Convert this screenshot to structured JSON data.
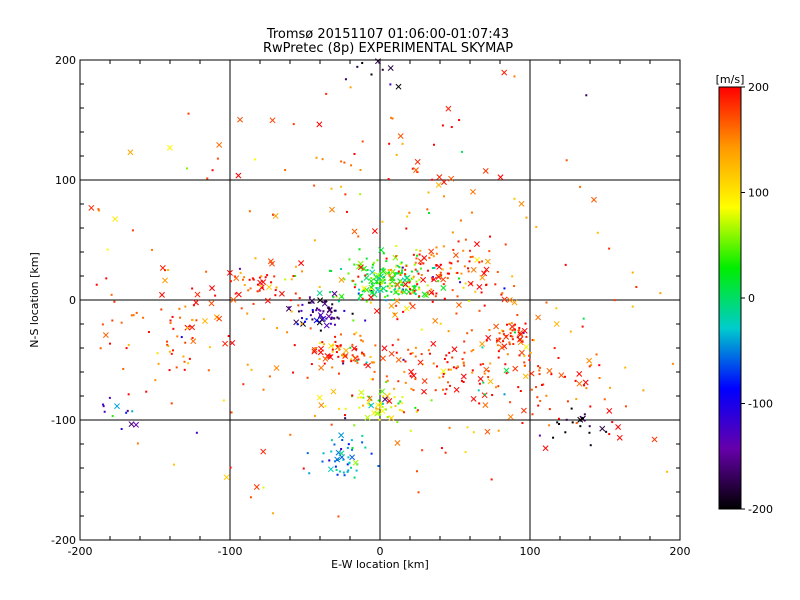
{
  "chart_data": {
    "type": "scatter",
    "title": "Tromsø 20151107 01:06:00-01:07:43",
    "subtitle": "RwPretec (8p) EXPERIMENTAL SKYMAP",
    "xlabel": "E-W location [km]",
    "ylabel": "N-S location [km]",
    "xlim": [
      -200,
      200
    ],
    "ylim": [
      -200,
      200
    ],
    "xticks": [
      "-200",
      "-100",
      "0",
      "100",
      "200"
    ],
    "yticks": [
      "-200",
      "-100",
      "0",
      "100",
      "200"
    ],
    "grid": true,
    "colorbar": {
      "label": "[m/s]",
      "range": [
        -200,
        200
      ],
      "ticks": [
        "200",
        "100",
        "0",
        "-100",
        "-200"
      ],
      "colors": [
        "#ff0000",
        "#ff9900",
        "#ffff00",
        "#00ee00",
        "#00cccc",
        "#0000ff",
        "#6600aa",
        "#000000"
      ]
    },
    "marker_types": [
      "dot",
      "cross"
    ],
    "clusters": [
      {
        "x": 5,
        "y": 15,
        "sx": 16,
        "sy": 10,
        "v": 30,
        "n": 180
      },
      {
        "x": 40,
        "y": 20,
        "sx": 20,
        "sy": 15,
        "v": 180,
        "n": 110
      },
      {
        "x": -40,
        "y": -10,
        "sx": 8,
        "sy": 6,
        "v": -150,
        "n": 60
      },
      {
        "x": -25,
        "y": -45,
        "sx": 12,
        "sy": 8,
        "v": 170,
        "n": 70
      },
      {
        "x": 88,
        "y": -30,
        "sx": 8,
        "sy": 8,
        "v": 190,
        "n": 60
      },
      {
        "x": 0,
        "y": -88,
        "sx": 14,
        "sy": 8,
        "v": 80,
        "n": 60
      },
      {
        "x": -22,
        "y": -132,
        "sx": 8,
        "sy": 10,
        "v": -40,
        "n": 50
      },
      {
        "x": -80,
        "y": 12,
        "sx": 10,
        "sy": 6,
        "v": 190,
        "n": 40
      },
      {
        "x": -140,
        "y": -25,
        "sx": 25,
        "sy": 20,
        "v": 185,
        "n": 60
      },
      {
        "x": 110,
        "y": -75,
        "sx": 25,
        "sy": 20,
        "v": 185,
        "n": 60
      },
      {
        "x": 35,
        "y": -60,
        "sx": 25,
        "sy": 15,
        "v": 190,
        "n": 80
      },
      {
        "x": 135,
        "y": -105,
        "sx": 10,
        "sy": 6,
        "v": -200,
        "n": 18
      },
      {
        "x": -175,
        "y": -95,
        "sx": 10,
        "sy": 8,
        "v": -140,
        "n": 12
      },
      {
        "x": 0,
        "y": 190,
        "sx": 10,
        "sy": 6,
        "v": -200,
        "n": 10
      },
      {
        "x": 5,
        "y": 105,
        "sx": 40,
        "sy": 35,
        "v": 190,
        "n": 30
      },
      {
        "x": 0,
        "y": 0,
        "sx": 110,
        "sy": 90,
        "v": 160,
        "n": 260
      }
    ]
  }
}
